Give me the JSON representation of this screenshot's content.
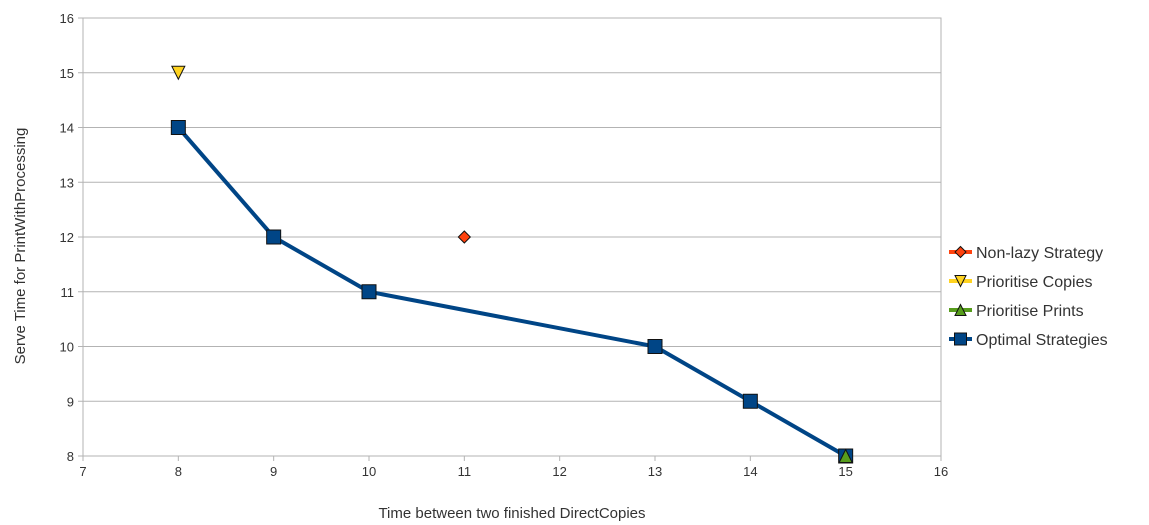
{
  "chart_data": {
    "type": "scatter",
    "title": "",
    "xlabel": "Time between two finished DirectCopies",
    "ylabel": "Serve Time for PrintWithProcessing",
    "xlim": [
      7,
      16
    ],
    "ylim": [
      8,
      16
    ],
    "x_ticks": [
      "7",
      "8",
      "9",
      "10",
      "11",
      "12",
      "13",
      "14",
      "15",
      "16"
    ],
    "y_ticks": [
      "8",
      "9",
      "10",
      "11",
      "12",
      "13",
      "14",
      "15",
      "16"
    ],
    "grid": "horizontal",
    "legend_position": "right",
    "series": [
      {
        "name": "Non-lazy Strategy",
        "marker": "diamond",
        "color": "#ff420e",
        "line": false,
        "points": [
          {
            "x": 11,
            "y": 12
          }
        ]
      },
      {
        "name": "Prioritise Copies",
        "marker": "triangle-down",
        "color": "#ffd320",
        "line": false,
        "points": [
          {
            "x": 8,
            "y": 15
          }
        ]
      },
      {
        "name": "Prioritise Prints",
        "marker": "triangle-up",
        "color": "#579d1c",
        "line": false,
        "points": [
          {
            "x": 15,
            "y": 8
          }
        ]
      },
      {
        "name": "Optimal Strategies",
        "marker": "square",
        "color": "#004586",
        "line": true,
        "points": [
          {
            "x": 8,
            "y": 14
          },
          {
            "x": 9,
            "y": 12
          },
          {
            "x": 10,
            "y": 11
          },
          {
            "x": 13,
            "y": 10
          },
          {
            "x": 14,
            "y": 9
          },
          {
            "x": 15,
            "y": 8
          }
        ]
      }
    ]
  }
}
